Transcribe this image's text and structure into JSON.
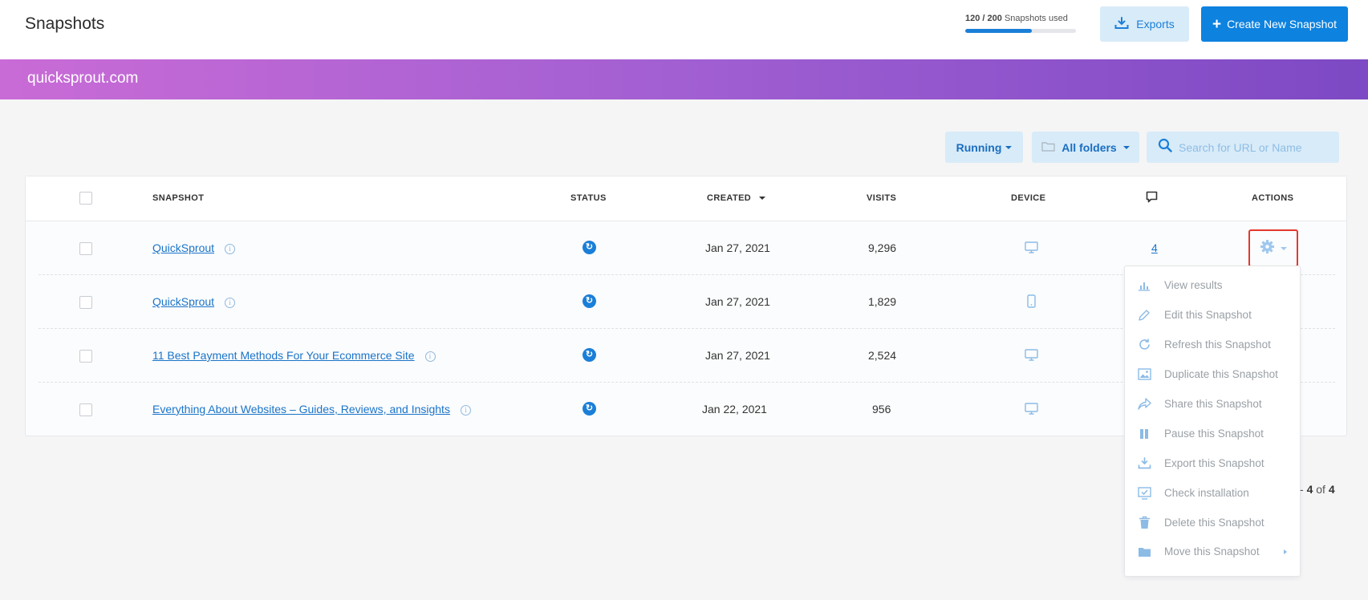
{
  "header": {
    "title": "Snapshots",
    "usage_count": "120 / 200",
    "usage_suffix": "Snapshots used",
    "usage_fraction": 0.6,
    "exports_label": "Exports",
    "create_label": "Create New Snapshot"
  },
  "site": {
    "name": "quicksprout.com"
  },
  "filters": {
    "status_label": "Running",
    "folder_label": "All folders",
    "search_placeholder": "Search for URL or Name"
  },
  "table": {
    "columns": {
      "snapshot": "SNAPSHOT",
      "status": "STATUS",
      "created": "CREATED",
      "visits": "VISITS",
      "device": "DEVICE",
      "actions": "ACTIONS"
    },
    "rows": [
      {
        "name": "QuickSprout",
        "created": "Jan 27, 2021",
        "visits": "9,296",
        "device": "desktop",
        "comments": "4"
      },
      {
        "name": "QuickSprout",
        "created": "Jan 27, 2021",
        "visits": "1,829",
        "device": "mobile",
        "comments": ""
      },
      {
        "name": "11 Best Payment Methods For Your Ecommerce Site",
        "created": "Jan 27, 2021",
        "visits": "2,524",
        "device": "desktop",
        "comments": ""
      },
      {
        "name": "Everything About Websites – Guides, Reviews, and Insights",
        "created": "Jan 22, 2021",
        "visits": "956",
        "device": "desktop",
        "comments": ""
      }
    ]
  },
  "actions_menu": {
    "items": [
      {
        "label": "View results",
        "icon": "bar-chart-icon"
      },
      {
        "label": "Edit this Snapshot",
        "icon": "pencil-icon"
      },
      {
        "label": "Refresh this Snapshot",
        "icon": "refresh-icon"
      },
      {
        "label": "Duplicate this Snapshot",
        "icon": "image-copy-icon"
      },
      {
        "label": "Share this Snapshot",
        "icon": "share-icon"
      },
      {
        "label": "Pause this Snapshot",
        "icon": "pause-icon"
      },
      {
        "label": "Export this Snapshot",
        "icon": "export-icon"
      },
      {
        "label": "Check installation",
        "icon": "monitor-check-icon"
      },
      {
        "label": "Delete this Snapshot",
        "icon": "trash-icon"
      },
      {
        "label": "Move this Snapshot",
        "icon": "folder-icon"
      }
    ]
  },
  "pagination": {
    "prefix": "- ",
    "to": "4",
    "of_label": " of ",
    "total": "4"
  }
}
